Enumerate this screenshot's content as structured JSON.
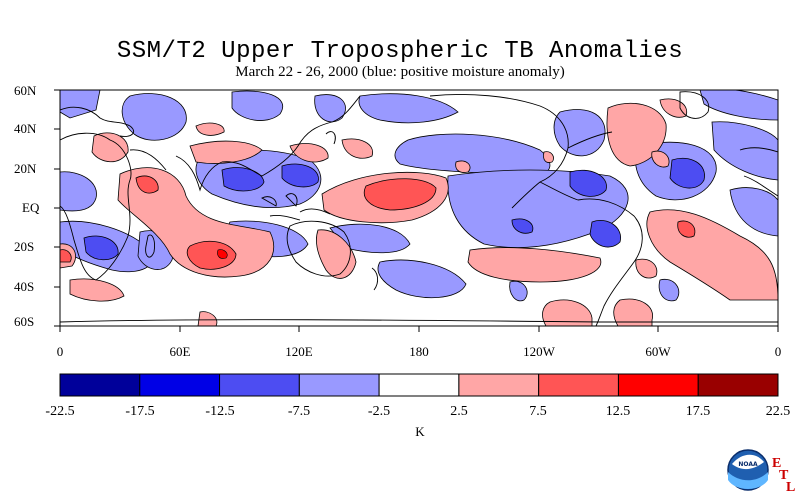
{
  "title": "SSM/T2 Upper Tropospheric TB Anomalies",
  "subtitle": "March 22 - 26, 2000 (blue: positive moisture anomaly)",
  "lat_labels": [
    "60N",
    "40N",
    "20N",
    "EQ",
    "20S",
    "40S",
    "60S"
  ],
  "lon_labels": [
    "0",
    "60E",
    "120E",
    "180",
    "120W",
    "60W",
    "0"
  ],
  "colorbar": {
    "boundaries": [
      "-22.5",
      "-17.5",
      "-12.5",
      "-7.5",
      "-2.5",
      "2.5",
      "7.5",
      "12.5",
      "17.5",
      "22.5"
    ],
    "colors": [
      "#00009a",
      "#0000e6",
      "#4d4df2",
      "#9999ff",
      "#ffffff",
      "#ffa6a6",
      "#ff5555",
      "#ff0000",
      "#990000"
    ],
    "unit": "K"
  },
  "colors": {
    "blue_light": "#9999ff",
    "blue_mid": "#4d4df2",
    "red_light": "#ffa6a6",
    "red_mid": "#ff5555"
  },
  "logo": {
    "text": "NOAA",
    "letters": [
      "E",
      "T",
      "L"
    ]
  }
}
